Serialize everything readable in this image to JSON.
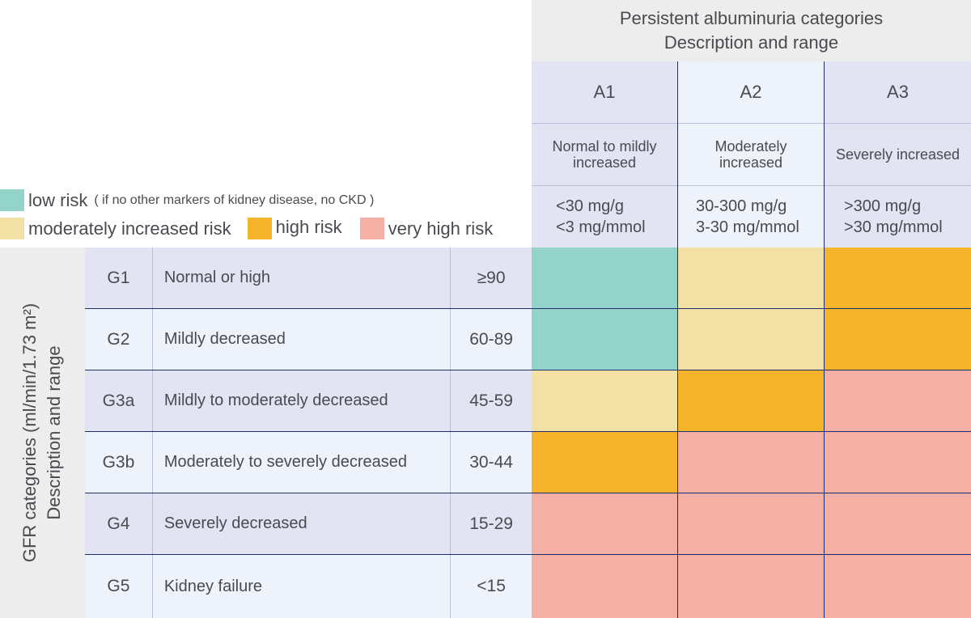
{
  "colors": {
    "low": "#93d3ca",
    "moderate": "#f3e0a4",
    "high": "#f6b42c",
    "very_high": "#f4b0a5"
  },
  "albuminuria": {
    "title_line1": "Persistent albuminuria categories",
    "title_line2": "Description and range",
    "columns": [
      {
        "code": "A1",
        "description": "Normal to mildly increased",
        "range1": "<30 mg/g",
        "range2": "<3 mg/mmol"
      },
      {
        "code": "A2",
        "description": "Moderately increased",
        "range1": "30-300 mg/g",
        "range2": "3-30 mg/mmol"
      },
      {
        "code": "A3",
        "description": "Severely increased",
        "range1": ">300 mg/g",
        "range2": ">30 mg/mmol"
      }
    ]
  },
  "legend": {
    "low": "low risk",
    "low_note": "( if no other markers of kidney disease, no CKD )",
    "moderate": "moderately increased risk",
    "high": "high risk",
    "very_high": "very high risk"
  },
  "gfr": {
    "label_line1": "GFR categories (ml/min/1.73 m²)",
    "label_line2": "Description and range",
    "rows": [
      {
        "code": "G1",
        "description": "Normal or high",
        "range": "≥90",
        "risk": [
          "low",
          "moderate",
          "high"
        ]
      },
      {
        "code": "G2",
        "description": "Mildly decreased",
        "range": "60-89",
        "risk": [
          "low",
          "moderate",
          "high"
        ]
      },
      {
        "code": "G3a",
        "description": "Mildly to moderately decreased",
        "range": "45-59",
        "risk": [
          "moderate",
          "high",
          "very_high"
        ]
      },
      {
        "code": "G3b",
        "description": "Moderately to severely decreased",
        "range": "30-44",
        "risk": [
          "high",
          "very_high",
          "very_high"
        ]
      },
      {
        "code": "G4",
        "description": "Severely decreased",
        "range": "15-29",
        "risk": [
          "very_high",
          "very_high",
          "very_high"
        ]
      },
      {
        "code": "G5",
        "description": "Kidney failure",
        "range": "<15",
        "risk": [
          "very_high",
          "very_high",
          "very_high"
        ]
      }
    ]
  }
}
